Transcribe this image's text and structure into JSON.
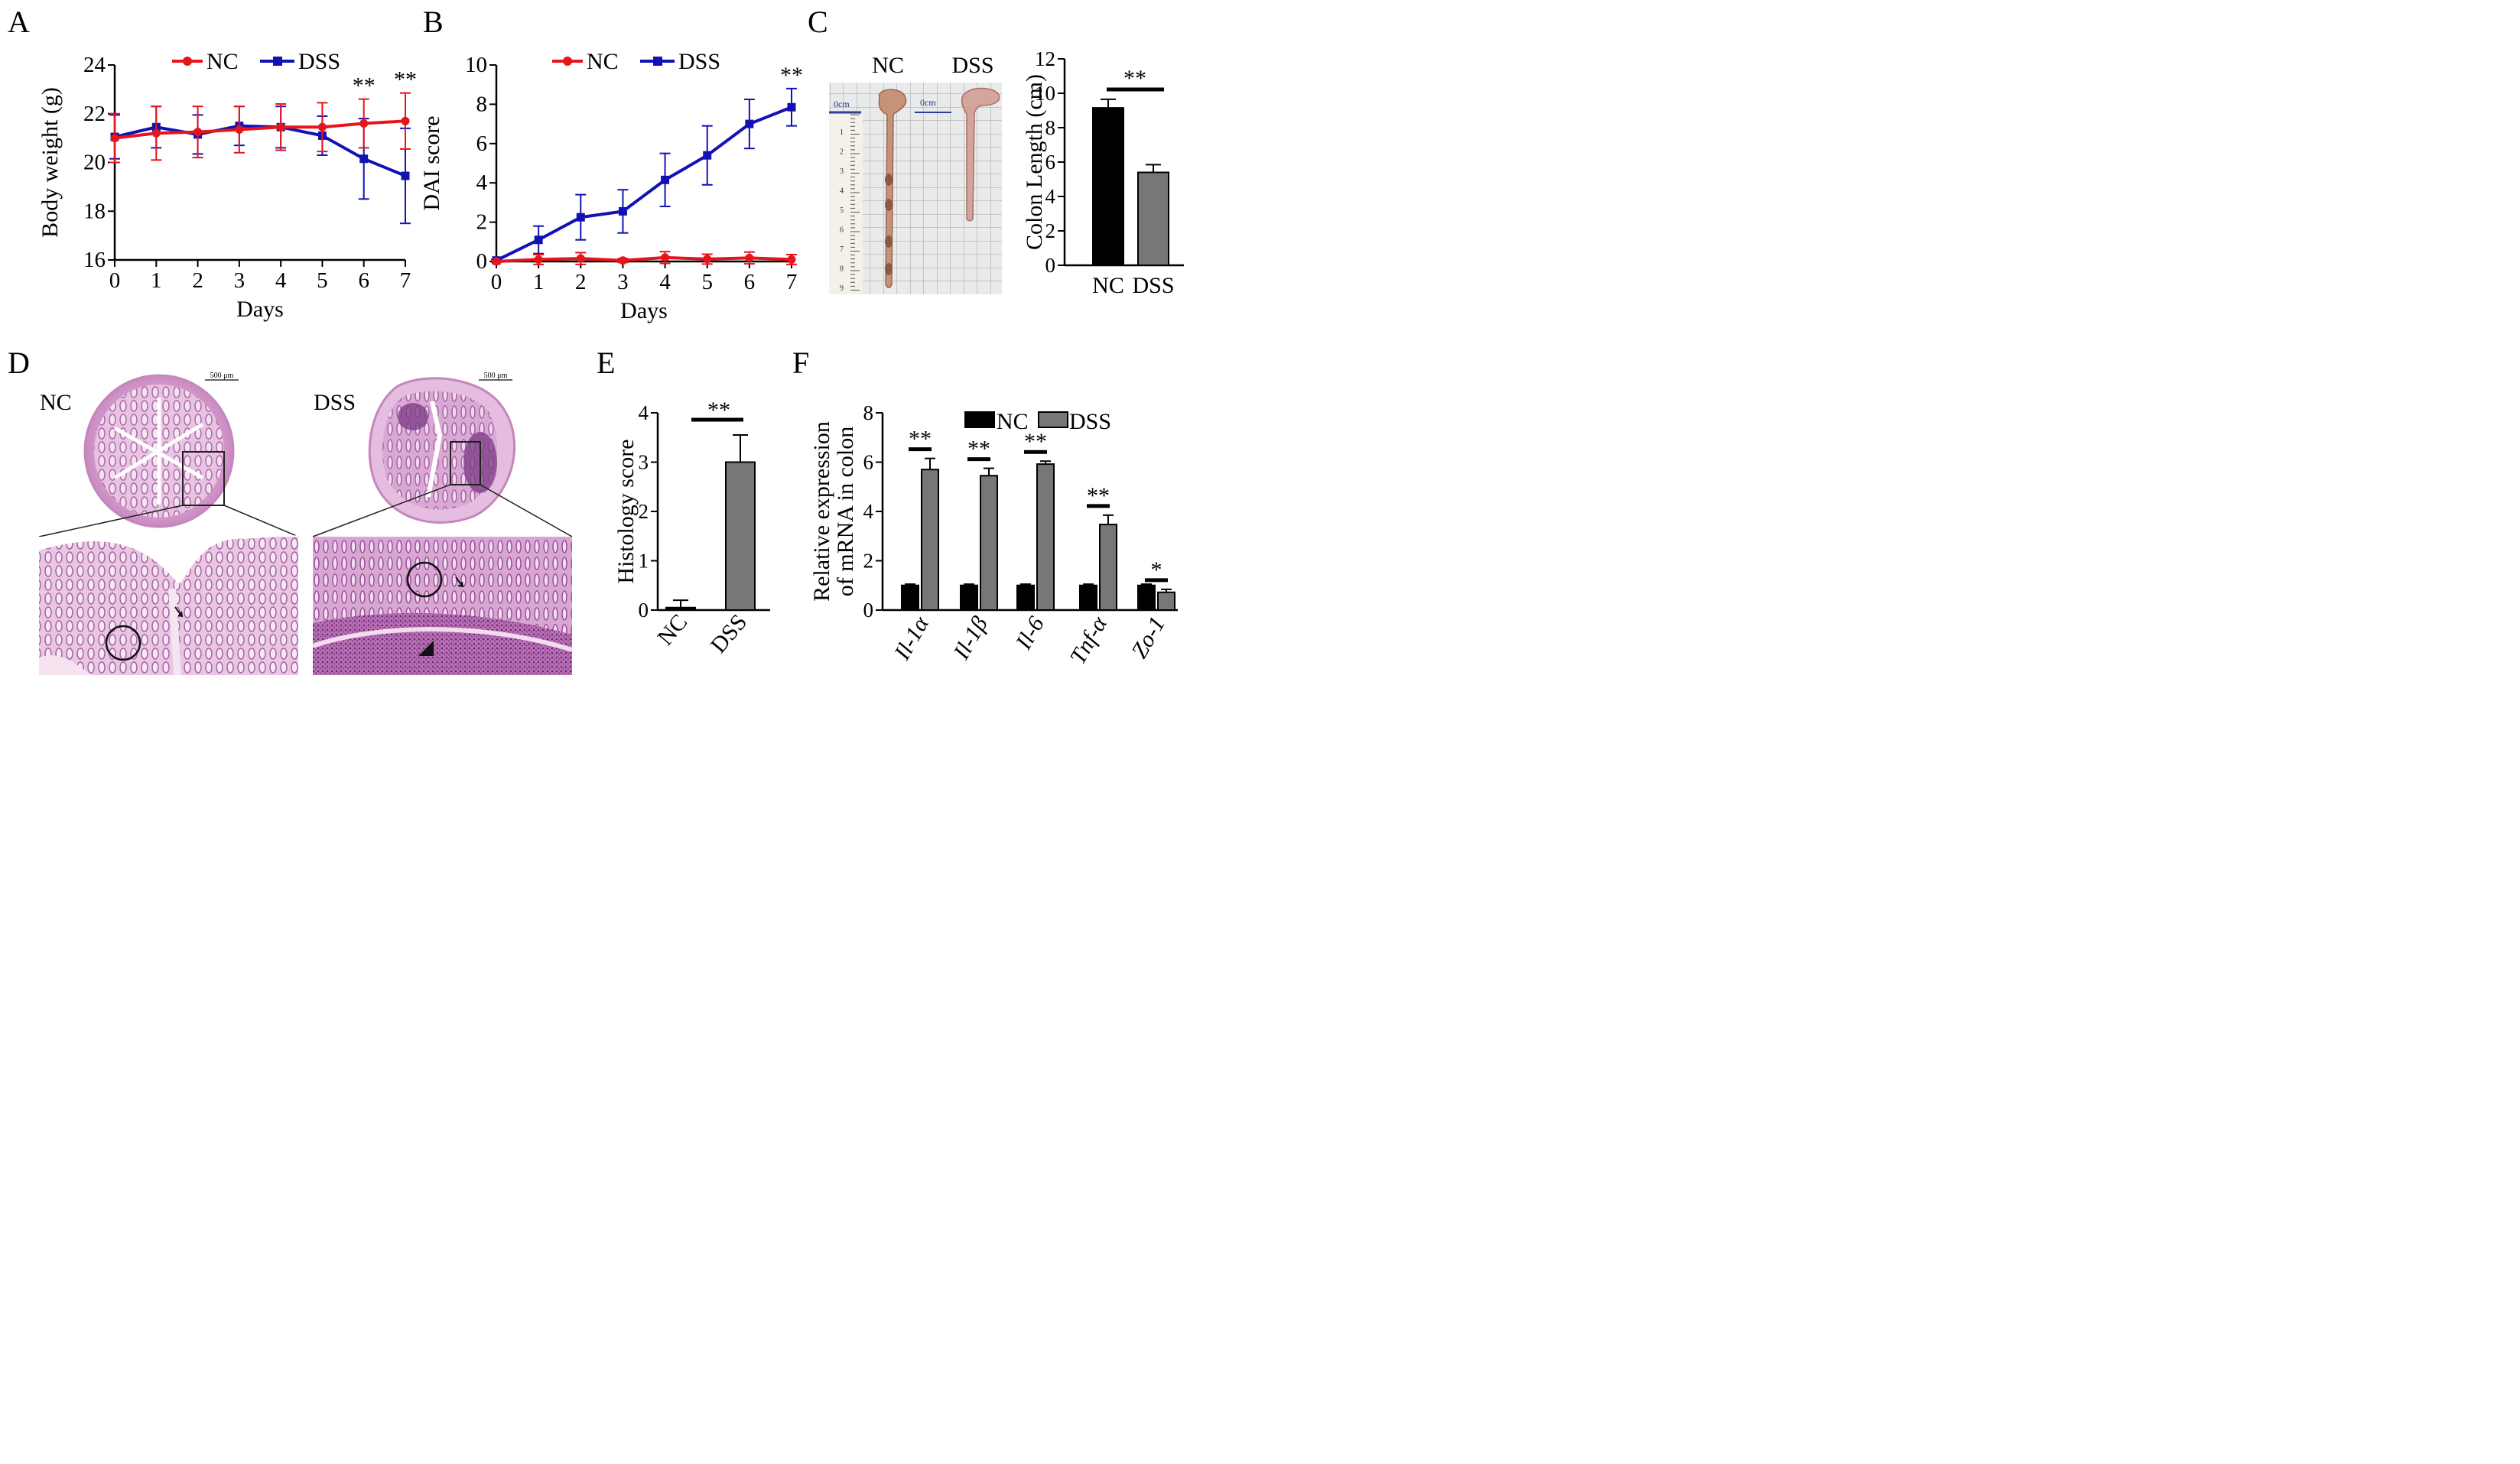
{
  "colors": {
    "nc_line": "#e8141c",
    "dss_line": "#1212b4",
    "nc_bar": "#000000",
    "dss_bar": "#777777"
  },
  "panel_labels": [
    "A",
    "B",
    "C",
    "D",
    "E",
    "F"
  ],
  "chart_data": [
    {
      "id": "A",
      "type": "line",
      "xlabel": "Days",
      "ylabel": "Body weight (g)",
      "x": [
        0,
        1,
        2,
        3,
        4,
        5,
        6,
        7
      ],
      "xticks": [
        "0",
        "1",
        "2",
        "3",
        "4",
        "5",
        "6",
        "7"
      ],
      "ylim": [
        16,
        24
      ],
      "yticks": [
        "16",
        "18",
        "20",
        "22",
        "24"
      ],
      "legend": [
        "NC",
        "DSS"
      ],
      "series": [
        {
          "name": "NC",
          "values": [
            21.0,
            21.2,
            21.25,
            21.35,
            21.45,
            21.45,
            21.6,
            21.7
          ],
          "err": [
            1.0,
            1.1,
            1.05,
            0.95,
            0.95,
            1.0,
            1.0,
            1.15
          ]
        },
        {
          "name": "DSS",
          "values": [
            21.05,
            21.45,
            21.15,
            21.5,
            21.45,
            21.1,
            20.15,
            19.45
          ],
          "err": [
            0.9,
            0.85,
            0.8,
            0.8,
            0.85,
            0.8,
            1.65,
            1.95
          ]
        }
      ],
      "annotations": [
        {
          "x": 6,
          "text": "**"
        },
        {
          "x": 7,
          "text": "**"
        }
      ]
    },
    {
      "id": "B",
      "type": "line",
      "xlabel": "Days",
      "ylabel": "DAI score",
      "x": [
        0,
        1,
        2,
        3,
        4,
        5,
        6,
        7
      ],
      "xticks": [
        "0",
        "1",
        "2",
        "3",
        "4",
        "5",
        "6",
        "7"
      ],
      "ylim": [
        0,
        10
      ],
      "yticks": [
        "0",
        "2",
        "4",
        "6",
        "8",
        "10"
      ],
      "legend": [
        "NC",
        "DSS"
      ],
      "series": [
        {
          "name": "NC",
          "values": [
            0,
            0.1,
            0.15,
            0.05,
            0.2,
            0.12,
            0.18,
            0.1
          ],
          "err": [
            0.05,
            0.25,
            0.3,
            0.1,
            0.3,
            0.25,
            0.3,
            0.25
          ]
        },
        {
          "name": "DSS",
          "values": [
            0.05,
            1.1,
            2.25,
            2.55,
            4.15,
            5.4,
            7.0,
            7.85
          ],
          "err": [
            0.05,
            0.7,
            1.15,
            1.1,
            1.35,
            1.5,
            1.25,
            0.95
          ]
        }
      ],
      "annotations": [
        {
          "x": 7,
          "text": "**"
        }
      ]
    },
    {
      "id": "C",
      "type": "bar",
      "ylabel": "Colon Length (cm)",
      "categories": [
        "NC",
        "DSS"
      ],
      "values": [
        9.15,
        5.4
      ],
      "err": [
        0.5,
        0.45
      ],
      "ylim": [
        0,
        12
      ],
      "yticks": [
        "0",
        "2",
        "4",
        "6",
        "8",
        "10",
        "12"
      ],
      "significance": "**",
      "photo_labels": [
        "NC",
        "DSS"
      ],
      "ruler_labels": [
        "0cm",
        "0cm"
      ],
      "ruler_ticks": [
        "1",
        "2",
        "3",
        "4",
        "5",
        "6",
        "7",
        "8",
        "9"
      ]
    },
    {
      "id": "D",
      "type": "image",
      "labels": [
        "NC",
        "DSS"
      ],
      "scale_bars": [
        "500 μm",
        "500 μm"
      ]
    },
    {
      "id": "E",
      "type": "bar",
      "ylabel": "Histology score",
      "categories": [
        "NC",
        "DSS"
      ],
      "values": [
        0.05,
        3.0
      ],
      "err": [
        0.15,
        0.55
      ],
      "ylim": [
        0,
        4
      ],
      "yticks": [
        "0",
        "1",
        "2",
        "3",
        "4"
      ],
      "significance": "**"
    },
    {
      "id": "F",
      "type": "bar",
      "ylabel": "Relative expression of mRNA in colon",
      "ylabel_lines": [
        "Relative expression",
        "of mRNA in colon"
      ],
      "categories": [
        "Il-1α",
        "Il-1β",
        "Il-6",
        "Tnf-α",
        "Zo-1"
      ],
      "legend": [
        "NC",
        "DSS"
      ],
      "series": [
        {
          "name": "NC",
          "values": [
            1.0,
            1.0,
            1.0,
            1.0,
            1.0
          ],
          "err": [
            0.05,
            0.05,
            0.05,
            0.05,
            0.05
          ]
        },
        {
          "name": "DSS",
          "values": [
            5.7,
            5.45,
            5.92,
            3.47,
            0.72
          ],
          "err": [
            0.45,
            0.3,
            0.12,
            0.38,
            0.12
          ]
        }
      ],
      "ylim": [
        0,
        8
      ],
      "yticks": [
        "0",
        "2",
        "4",
        "6",
        "8"
      ],
      "significance": [
        "**",
        "**",
        "**",
        "**",
        "*"
      ]
    }
  ]
}
